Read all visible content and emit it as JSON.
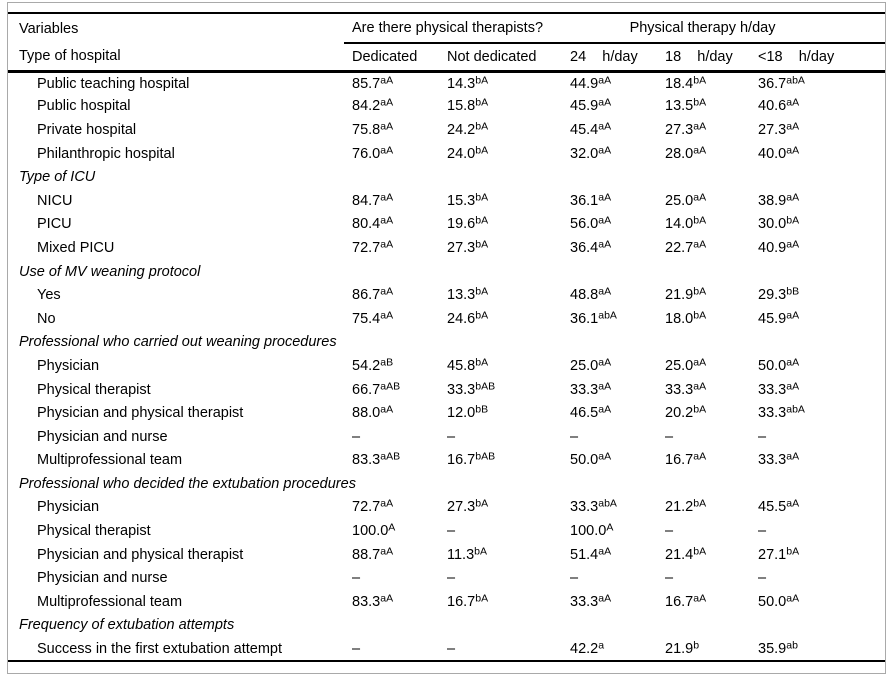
{
  "table": {
    "header": {
      "variables": "Variables",
      "col1": "Type of hospital",
      "group1": "Are there physical therapists?",
      "group2": "Physical therapy h/day",
      "cols": [
        "Dedicated",
        "Not dedicated",
        "24    h/day",
        "18    h/day",
        "<18    h/day"
      ]
    },
    "rows": [
      {
        "kind": "item",
        "label": "Public teaching hospital",
        "cells": [
          {
            "v": "85.7",
            "s": "aA"
          },
          {
            "v": "14.3",
            "s": "bA"
          },
          {
            "v": "44.9",
            "s": "aA"
          },
          {
            "v": "18.4",
            "s": "bA"
          },
          {
            "v": "36.7",
            "s": "abA"
          }
        ]
      },
      {
        "kind": "item",
        "label": "Public hospital",
        "cells": [
          {
            "v": "84.2",
            "s": "aA"
          },
          {
            "v": "15.8",
            "s": "bA"
          },
          {
            "v": "45.9",
            "s": "aA"
          },
          {
            "v": "13.5",
            "s": "bA"
          },
          {
            "v": "40.6",
            "s": "aA"
          }
        ]
      },
      {
        "kind": "item",
        "label": "Private hospital",
        "cells": [
          {
            "v": "75.8",
            "s": "aA"
          },
          {
            "v": "24.2",
            "s": "bA"
          },
          {
            "v": "45.4",
            "s": "aA"
          },
          {
            "v": "27.3",
            "s": "aA"
          },
          {
            "v": "27.3",
            "s": "aA"
          }
        ]
      },
      {
        "kind": "item",
        "label": "Philanthropic hospital",
        "cells": [
          {
            "v": "76.0",
            "s": "aA"
          },
          {
            "v": "24.0",
            "s": "bA"
          },
          {
            "v": "32.0",
            "s": "aA"
          },
          {
            "v": "28.0",
            "s": "aA"
          },
          {
            "v": "40.0",
            "s": "aA"
          }
        ]
      },
      {
        "kind": "section",
        "label": "Type of ICU",
        "cells": []
      },
      {
        "kind": "item",
        "label": "NICU",
        "cells": [
          {
            "v": "84.7",
            "s": "aA"
          },
          {
            "v": "15.3",
            "s": "bA"
          },
          {
            "v": "36.1",
            "s": "aA"
          },
          {
            "v": "25.0",
            "s": "aA"
          },
          {
            "v": "38.9",
            "s": "aA"
          }
        ]
      },
      {
        "kind": "item",
        "label": "PICU",
        "cells": [
          {
            "v": "80.4",
            "s": "aA"
          },
          {
            "v": "19.6",
            "s": "bA"
          },
          {
            "v": "56.0",
            "s": "aA"
          },
          {
            "v": "14.0",
            "s": "bA"
          },
          {
            "v": "30.0",
            "s": "bA"
          }
        ]
      },
      {
        "kind": "item",
        "label": "Mixed PICU",
        "cells": [
          {
            "v": "72.7",
            "s": "aA"
          },
          {
            "v": "27.3",
            "s": "bA"
          },
          {
            "v": "36.4",
            "s": "aA"
          },
          {
            "v": "22.7",
            "s": "aA"
          },
          {
            "v": "40.9",
            "s": "aA"
          }
        ]
      },
      {
        "kind": "section",
        "label": "Use of MV weaning protocol",
        "cells": []
      },
      {
        "kind": "item",
        "label": "Yes",
        "cells": [
          {
            "v": "86.7",
            "s": "aA"
          },
          {
            "v": "13.3",
            "s": "bA"
          },
          {
            "v": "48.8",
            "s": "aA"
          },
          {
            "v": "21.9",
            "s": "bA"
          },
          {
            "v": "29.3",
            "s": "bB"
          }
        ]
      },
      {
        "kind": "item",
        "label": "No",
        "cells": [
          {
            "v": "75.4",
            "s": "aA"
          },
          {
            "v": "24.6",
            "s": "bA"
          },
          {
            "v": "36.1",
            "s": "abA"
          },
          {
            "v": "18.0",
            "s": "bA"
          },
          {
            "v": "45.9",
            "s": "aA"
          }
        ]
      },
      {
        "kind": "section",
        "label": "Professional who carried out weaning procedures",
        "cells": []
      },
      {
        "kind": "item",
        "label": "Physician",
        "cells": [
          {
            "v": "54.2",
            "s": "aB"
          },
          {
            "v": "45.8",
            "s": "bA"
          },
          {
            "v": "25.0",
            "s": "aA"
          },
          {
            "v": "25.0",
            "s": "aA"
          },
          {
            "v": "50.0",
            "s": "aA"
          }
        ]
      },
      {
        "kind": "item",
        "label": "Physical therapist",
        "cells": [
          {
            "v": "66.7",
            "s": "aAB"
          },
          {
            "v": "33.3",
            "s": "bAB"
          },
          {
            "v": "33.3",
            "s": "aA"
          },
          {
            "v": "33.3",
            "s": "aA"
          },
          {
            "v": "33.3",
            "s": "aA"
          }
        ]
      },
      {
        "kind": "item",
        "label": "Physician and physical therapist",
        "cells": [
          {
            "v": "88.0",
            "s": "aA"
          },
          {
            "v": "12.0",
            "s": "bB"
          },
          {
            "v": "46.5",
            "s": "aA"
          },
          {
            "v": "20.2",
            "s": "bA"
          },
          {
            "v": "33.3",
            "s": "abA"
          }
        ]
      },
      {
        "kind": "item",
        "label": "Physician and nurse",
        "cells": [
          {
            "v": "–",
            "s": ""
          },
          {
            "v": "–",
            "s": ""
          },
          {
            "v": "–",
            "s": ""
          },
          {
            "v": "–",
            "s": ""
          },
          {
            "v": "–",
            "s": ""
          }
        ]
      },
      {
        "kind": "item",
        "label": "Multiprofessional team",
        "cells": [
          {
            "v": "83.3",
            "s": "aAB"
          },
          {
            "v": "16.7",
            "s": "bAB"
          },
          {
            "v": "50.0",
            "s": "aA"
          },
          {
            "v": "16.7",
            "s": "aA"
          },
          {
            "v": "33.3",
            "s": "aA"
          }
        ]
      },
      {
        "kind": "section",
        "label": "Professional who decided the extubation procedures",
        "cells": []
      },
      {
        "kind": "item",
        "label": "Physician",
        "cells": [
          {
            "v": "72.7",
            "s": "aA"
          },
          {
            "v": "27.3",
            "s": "bA"
          },
          {
            "v": "33.3",
            "s": "abA"
          },
          {
            "v": "21.2",
            "s": "bA"
          },
          {
            "v": "45.5",
            "s": "aA"
          }
        ]
      },
      {
        "kind": "item",
        "label": "Physical therapist",
        "cells": [
          {
            "v": "100.0",
            "s": "A"
          },
          {
            "v": "–",
            "s": ""
          },
          {
            "v": "100.0",
            "s": "A"
          },
          {
            "v": "–",
            "s": ""
          },
          {
            "v": "–",
            "s": ""
          }
        ]
      },
      {
        "kind": "item",
        "label": "Physician and physical therapist",
        "cells": [
          {
            "v": "88.7",
            "s": "aA"
          },
          {
            "v": "11.3",
            "s": "bA"
          },
          {
            "v": "51.4",
            "s": "aA"
          },
          {
            "v": "21.4",
            "s": "bA"
          },
          {
            "v": "27.1",
            "s": "bA"
          }
        ]
      },
      {
        "kind": "item",
        "label": "Physician and nurse",
        "cells": [
          {
            "v": "–",
            "s": ""
          },
          {
            "v": "–",
            "s": ""
          },
          {
            "v": "–",
            "s": ""
          },
          {
            "v": "–",
            "s": ""
          },
          {
            "v": "–",
            "s": ""
          }
        ]
      },
      {
        "kind": "item",
        "label": "Multiprofessional team",
        "cells": [
          {
            "v": "83.3",
            "s": "aA"
          },
          {
            "v": "16.7",
            "s": "bA"
          },
          {
            "v": "33.3",
            "s": "aA"
          },
          {
            "v": "16.7",
            "s": "aA"
          },
          {
            "v": "50.0",
            "s": "aA"
          }
        ]
      },
      {
        "kind": "section",
        "label": "Frequency of extubation attempts",
        "cells": []
      },
      {
        "kind": "item",
        "label": "Success in the first extubation attempt",
        "cells": [
          {
            "v": "–",
            "s": ""
          },
          {
            "v": "–",
            "s": ""
          },
          {
            "v": "42.2",
            "s": "a"
          },
          {
            "v": "21.9",
            "s": "b"
          },
          {
            "v": "35.9",
            "s": "ab"
          }
        ]
      }
    ]
  }
}
